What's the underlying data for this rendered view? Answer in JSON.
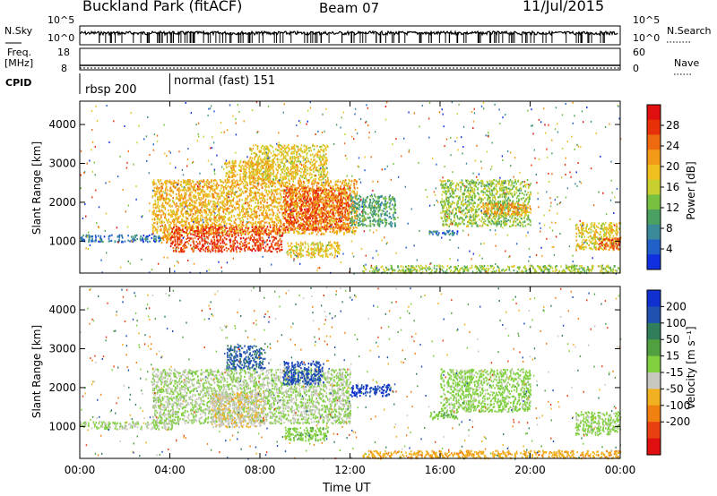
{
  "header": {
    "station": "Buckland Park (fitACF)",
    "beam": "Beam 07",
    "date": "11/Jul/2015"
  },
  "status_panels": {
    "nsky_label": "N.Sky",
    "nsearch_label": "N.Search",
    "nsky_ticks": [
      "10^5",
      "10^0"
    ],
    "nsearch_ticks": [
      "10^5",
      "10^0"
    ],
    "freq_label": "Freq.",
    "freq_unit": "[MHz]",
    "freq_ticks": [
      "18",
      "8"
    ],
    "nave_label": "Nave",
    "nave_ticks": [
      "60",
      "0"
    ],
    "cpid_label": "CPID",
    "cpid_segments": [
      {
        "label": "rbsp 200",
        "start_hour": 0
      },
      {
        "label": "normal (fast) 151",
        "start_hour": 4
      }
    ]
  },
  "chart_data": [
    {
      "type": "heatmap",
      "name": "power",
      "ylabel": "Slant Range [km]",
      "yticks": [
        1000,
        2000,
        3000,
        4000
      ],
      "ylim": [
        180,
        4600
      ],
      "xlim": [
        0,
        24
      ],
      "colorbar": {
        "label": "Power [dB]",
        "ticks": [
          4,
          8,
          12,
          16,
          20,
          24,
          28
        ],
        "range": [
          0,
          32
        ],
        "colors": [
          "#1030e0",
          "#2060c8",
          "#3a8a9a",
          "#4aa060",
          "#78c040",
          "#c8d030",
          "#f0c020",
          "#f39a18",
          "#ee6a10",
          "#e83008",
          "#e01010"
        ]
      },
      "regions": [
        {
          "x0": 0.0,
          "x1": 3.6,
          "y0": 1000,
          "y1": 1180,
          "v": 6
        },
        {
          "x0": 3.6,
          "x1": 4.2,
          "y0": 980,
          "y1": 1200,
          "v": 22
        },
        {
          "x0": 3.2,
          "x1": 12.3,
          "y0": 1200,
          "y1": 2600,
          "v": 20
        },
        {
          "x0": 4.0,
          "x1": 9.0,
          "y0": 750,
          "y1": 1400,
          "v": 27
        },
        {
          "x0": 9.0,
          "x1": 12.0,
          "y0": 1300,
          "y1": 2400,
          "v": 26
        },
        {
          "x0": 6.4,
          "x1": 8.6,
          "y0": 2500,
          "y1": 3100,
          "v": 20
        },
        {
          "x0": 7.5,
          "x1": 11.0,
          "y0": 2600,
          "y1": 3500,
          "v": 18
        },
        {
          "x0": 9.2,
          "x1": 11.5,
          "y0": 600,
          "y1": 1000,
          "v": 18
        },
        {
          "x0": 12.0,
          "x1": 14.0,
          "y0": 1400,
          "y1": 2200,
          "v": 10
        },
        {
          "x0": 15.5,
          "x1": 16.8,
          "y0": 1180,
          "y1": 1300,
          "v": 6
        },
        {
          "x0": 16.0,
          "x1": 20.0,
          "y0": 1400,
          "y1": 2600,
          "v": 14
        },
        {
          "x0": 17.8,
          "x1": 20.0,
          "y0": 1700,
          "y1": 2000,
          "v": 22
        },
        {
          "x0": 22.0,
          "x1": 24.0,
          "y0": 800,
          "y1": 1500,
          "v": 18
        },
        {
          "x0": 23.0,
          "x1": 24.0,
          "y0": 800,
          "y1": 1100,
          "v": 26
        },
        {
          "x0": 12.5,
          "x1": 24.0,
          "y0": 200,
          "y1": 400,
          "v": 14
        }
      ]
    },
    {
      "type": "heatmap",
      "name": "velocity",
      "ylabel": "Slant Range [km]",
      "yticks": [
        1000,
        2000,
        3000,
        4000
      ],
      "ylim": [
        180,
        4600
      ],
      "xlim": [
        0,
        24
      ],
      "colorbar": {
        "label": "Velocity [m s⁻¹]",
        "ticks": [
          "200",
          "100",
          "50",
          "15",
          "-15",
          "-50",
          "-100",
          "-200"
        ],
        "colors": [
          "#1030d0",
          "#2050b0",
          "#307e5a",
          "#50a040",
          "#80d040",
          "#c8c8c0",
          "#f0b020",
          "#f08010",
          "#e84010",
          "#e01010"
        ]
      },
      "regions": [
        {
          "x0": 0.0,
          "x1": 4.2,
          "y0": 950,
          "y1": 1150,
          "v": 0
        },
        {
          "x0": 3.2,
          "x1": 12.0,
          "y0": 1100,
          "y1": 2500,
          "v": 0
        },
        {
          "x0": 5.8,
          "x1": 8.2,
          "y0": 1000,
          "y1": 1900,
          "v": -40
        },
        {
          "x0": 6.5,
          "x1": 8.2,
          "y0": 2500,
          "y1": 3100,
          "v": 160
        },
        {
          "x0": 9.0,
          "x1": 10.8,
          "y0": 2100,
          "y1": 2700,
          "v": 180
        },
        {
          "x0": 12.0,
          "x1": 13.8,
          "y0": 1800,
          "y1": 2100,
          "v": 200
        },
        {
          "x0": 9.0,
          "x1": 11.0,
          "y0": 650,
          "y1": 1000,
          "v": 30
        },
        {
          "x0": 15.5,
          "x1": 16.8,
          "y0": 1200,
          "y1": 1400,
          "v": 40
        },
        {
          "x0": 16.0,
          "x1": 20.0,
          "y0": 1400,
          "y1": 2500,
          "v": 20
        },
        {
          "x0": 22.0,
          "x1": 24.0,
          "y0": 800,
          "y1": 1400,
          "v": 20
        },
        {
          "x0": 12.5,
          "x1": 24.0,
          "y0": 200,
          "y1": 400,
          "v": -80
        }
      ]
    }
  ],
  "x_axis": {
    "label": "Time UT",
    "ticks": [
      "00:00",
      "04:00",
      "08:00",
      "12:00",
      "16:00",
      "20:00",
      "00:00"
    ],
    "tick_hours": [
      0,
      4,
      8,
      12,
      16,
      20,
      24
    ]
  }
}
